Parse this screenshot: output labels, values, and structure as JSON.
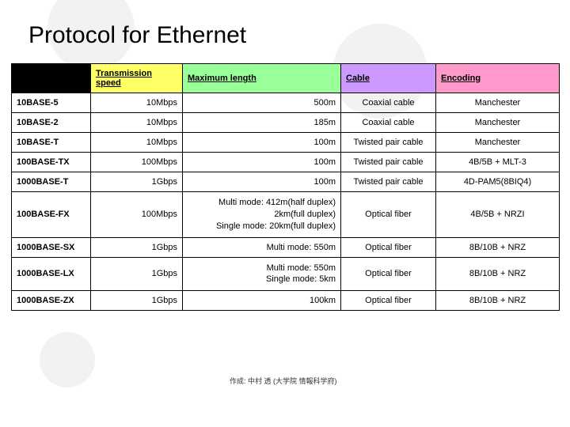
{
  "title": "Protocol for Ethernet",
  "header": {
    "name_bg": "#000000",
    "cells": [
      {
        "label": "Transmission speed",
        "bg": "#ffff66"
      },
      {
        "label": "Maximum length",
        "bg": "#99ff99"
      },
      {
        "label": "Cable",
        "bg": "#cc99ff"
      },
      {
        "label": "Encoding",
        "bg": "#ff99cc"
      }
    ]
  },
  "columns": {
    "name_width": 100,
    "speed_width": 116,
    "length_width": 200,
    "cable_width": 120,
    "enc_width": 156
  },
  "rows": [
    {
      "name": "10BASE-5",
      "speed": "10Mbps",
      "len": "500m",
      "cable": "Coaxial cable",
      "enc": "Manchester"
    },
    {
      "name": "10BASE-2",
      "speed": "10Mbps",
      "len": "185m",
      "cable": "Coaxial cable",
      "enc": "Manchester"
    },
    {
      "name": "10BASE-T",
      "speed": "10Mbps",
      "len": "100m",
      "cable": "Twisted pair cable",
      "enc": "Manchester"
    },
    {
      "name": "100BASE-TX",
      "speed": "100Mbps",
      "len": "100m",
      "cable": "Twisted pair cable",
      "enc": "4B/5B + MLT-3"
    },
    {
      "name": "1000BASE-T",
      "speed": "1Gbps",
      "len": "100m",
      "cable": "Twisted pair cable",
      "enc": "4D-PAM5(8BIQ4)"
    },
    {
      "name": "100BASE-FX",
      "speed": "100Mbps",
      "len_lines": [
        "Multi mode: 412m(half duplex)",
        "2km(full duplex)",
        "Single mode: 20km(full duplex)"
      ],
      "cable": "Optical fiber",
      "enc": "4B/5B + NRZI"
    },
    {
      "name": "1000BASE-SX",
      "speed": "1Gbps",
      "len": "Multi mode: 550m",
      "cable": "Optical fiber",
      "enc": "8B/10B + NRZ"
    },
    {
      "name": "1000BASE-LX",
      "speed": "1Gbps",
      "len_lines": [
        "Multi mode: 550m",
        "Single mode: 5km"
      ],
      "cable": "Optical fiber",
      "enc": "8B/10B + NRZ"
    },
    {
      "name": "1000BASE-ZX",
      "speed": "1Gbps",
      "len": "100km",
      "cable": "Optical fiber",
      "enc": "8B/10B + NRZ"
    }
  ],
  "footnote": "作成: 中村 透 (大学院 情報科学府)",
  "style": {
    "cell_border": "#000000",
    "body_bg": "#ffffff",
    "font_size_body": 11,
    "font_size_title": 30
  }
}
